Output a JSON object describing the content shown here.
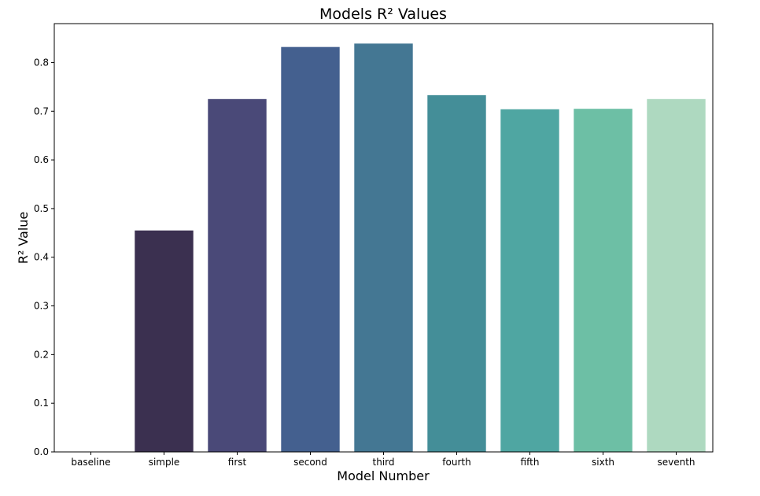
{
  "chart_data": {
    "type": "bar",
    "title": "Models R² Values",
    "xlabel": "Model Number",
    "ylabel": "R² Value",
    "categories": [
      "baseline",
      "simple",
      "first",
      "second",
      "third",
      "fourth",
      "fifth",
      "sixth",
      "seventh"
    ],
    "values": [
      0.0,
      0.455,
      0.725,
      0.832,
      0.839,
      0.733,
      0.704,
      0.705,
      0.725
    ],
    "colors": [
      "#2b1f3a",
      "#3b3050",
      "#4a4978",
      "#44608f",
      "#447793",
      "#448e98",
      "#4fa6a2",
      "#6dbfa5",
      "#aed9c0"
    ],
    "ylim": [
      0,
      0.88
    ],
    "yticks": [
      0.0,
      0.1,
      0.2,
      0.3,
      0.4,
      0.5,
      0.6,
      0.7,
      0.8
    ],
    "ytick_labels": [
      "0.0",
      "0.1",
      "0.2",
      "0.3",
      "0.4",
      "0.5",
      "0.6",
      "0.7",
      "0.8"
    ],
    "grid": false,
    "legend": "none"
  }
}
